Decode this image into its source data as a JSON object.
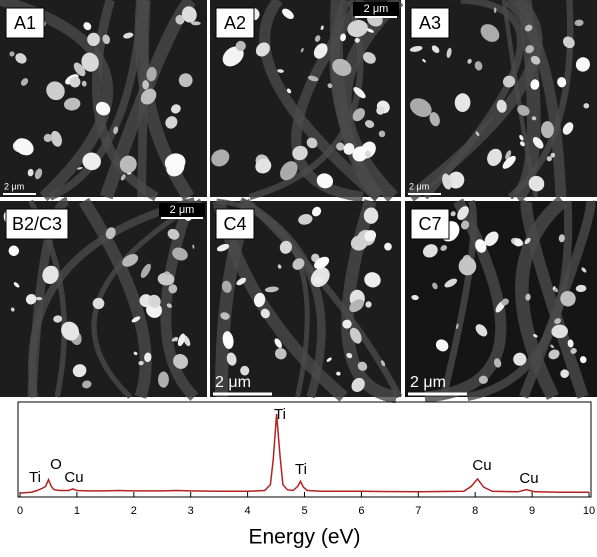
{
  "panels": [
    {
      "label": "A1",
      "scale_bar": "2 μm"
    },
    {
      "label": "A2",
      "scale_bar": "2 μm"
    },
    {
      "label": "A3",
      "scale_bar": "2 μm"
    },
    {
      "label": "B2/C3",
      "scale_bar": "2 μm"
    },
    {
      "label": "C4",
      "scale_bar": "2 μm"
    },
    {
      "label": "C7",
      "scale_bar": "2 μm"
    }
  ],
  "chart_data": {
    "type": "line",
    "xlabel": "Energy (eV)",
    "color": "#b22222",
    "x": [
      0,
      0.2,
      0.3,
      0.4,
      0.45,
      0.5,
      0.55,
      0.6,
      0.7,
      0.85,
      0.93,
      1.0,
      1.2,
      1.5,
      1.75,
      2,
      2.5,
      2.75,
      3,
      3.5,
      4,
      4.3,
      4.4,
      4.45,
      4.51,
      4.57,
      4.62,
      4.7,
      4.8,
      4.88,
      4.93,
      4.98,
      5.05,
      5.3,
      6,
      7,
      7.8,
      7.93,
      8.04,
      8.15,
      8.3,
      8.75,
      8.9,
      9.05,
      9.5,
      10
    ],
    "values": [
      0,
      1,
      3,
      6,
      8,
      16,
      8,
      4,
      3,
      3,
      5,
      3,
      2.5,
      2.5,
      3,
      2.5,
      2.5,
      3,
      2.5,
      2,
      2,
      3,
      10,
      40,
      95,
      45,
      10,
      4,
      3,
      8,
      14,
      7,
      3,
      2,
      2,
      1.5,
      2,
      8,
      17,
      7,
      2,
      1.5,
      4,
      1.5,
      1,
      1
    ],
    "xlim": [
      0,
      10
    ],
    "xticks": [
      0,
      1,
      2,
      3,
      4,
      5,
      6,
      7,
      8,
      9,
      10
    ],
    "ylim": [
      0,
      100
    ],
    "annotations": [
      "Ti",
      "O",
      "Cu",
      "Ti",
      "Ti",
      "Cu",
      "Cu"
    ]
  }
}
